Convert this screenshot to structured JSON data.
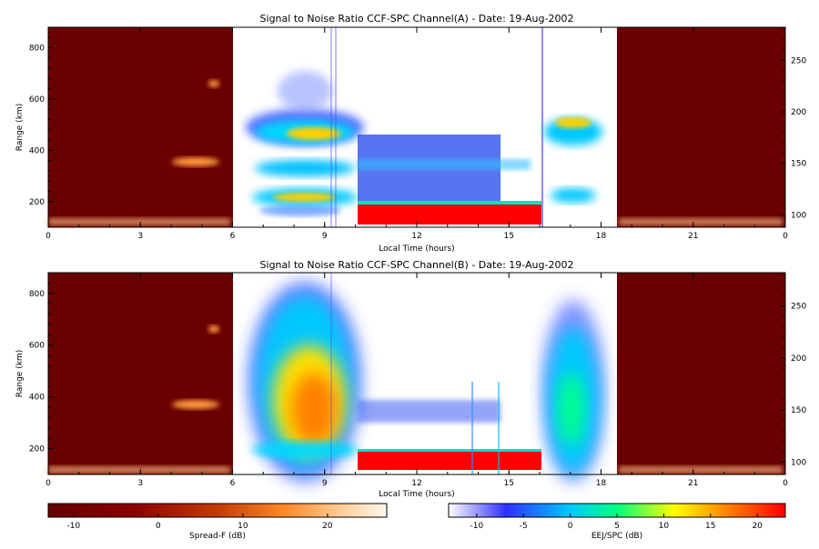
{
  "chart_data": [
    {
      "type": "heatmap",
      "title": "Signal to Noise Ratio CCF-SPC Channel(A) - Date: 19-Aug-2002",
      "xlabel": "Local Time (hours)",
      "ylabel": "Range (km)",
      "x_ticks": [
        "0",
        "3",
        "6",
        "9",
        "12",
        "15",
        "18",
        "21",
        "0"
      ],
      "y_ticks": [
        "200",
        "400",
        "600",
        "800"
      ],
      "y2_ticks": [
        "100",
        "150",
        "200",
        "250"
      ],
      "ylim": [
        100,
        880
      ],
      "y2lim": [
        88,
        282
      ],
      "grid": false,
      "regions": [
        {
          "name": "Spread-F",
          "x_start": 0,
          "x_end": 6,
          "colorbar": "Spread-F"
        },
        {
          "name": "EEJ/SPC",
          "x_start": 6,
          "x_end": 18.5,
          "colorbar": "EEJ/SPC"
        },
        {
          "name": "Spread-F",
          "x_start": 18.5,
          "x_end": 24,
          "colorbar": "Spread-F"
        }
      ],
      "features": [
        {
          "kind": "echo",
          "x_start": 3.9,
          "x_end": 5.2,
          "y_start": 360,
          "y_end": 400,
          "snr_db": 12,
          "colorbar": "Spread-F"
        },
        {
          "kind": "echo",
          "x_start": 5.1,
          "x_end": 5.3,
          "y_start": 640,
          "y_end": 680,
          "snr_db": 6,
          "colorbar": "Spread-F"
        },
        {
          "kind": "layer",
          "x_start": 7.2,
          "x_end": 10.0,
          "y_start": 380,
          "y_end": 540,
          "snr_db": 2,
          "colorbar": "EEJ/SPC"
        },
        {
          "kind": "layer",
          "x_start": 7.5,
          "x_end": 10.0,
          "y_start": 200,
          "y_end": 260,
          "snr_db": 0,
          "colorbar": "EEJ/SPC"
        },
        {
          "kind": "EEJ",
          "x_start": 10.0,
          "x_end": 16.0,
          "y_start": 130,
          "y_end": 200,
          "snr_db": 22,
          "colorbar": "EEJ/SPC"
        },
        {
          "kind": "layer",
          "x_start": 16.2,
          "x_end": 17.5,
          "y_start": 390,
          "y_end": 540,
          "snr_db": 0,
          "colorbar": "EEJ/SPC"
        }
      ]
    },
    {
      "type": "heatmap",
      "title": "Signal to Noise Ratio CCF-SPC Channel(B) - Date: 19-Aug-2002",
      "xlabel": "Local Time (hours)",
      "ylabel": "Range (km)",
      "x_ticks": [
        "0",
        "3",
        "6",
        "9",
        "12",
        "15",
        "18",
        "21",
        "0"
      ],
      "y_ticks": [
        "200",
        "400",
        "600",
        "800"
      ],
      "y2_ticks": [
        "100",
        "150",
        "200",
        "250"
      ],
      "ylim": [
        100,
        880
      ],
      "y2lim": [
        88,
        282
      ],
      "grid": false,
      "regions": [
        {
          "name": "Spread-F",
          "x_start": 0,
          "x_end": 6,
          "colorbar": "Spread-F"
        },
        {
          "name": "EEJ/SPC",
          "x_start": 6,
          "x_end": 18.5,
          "colorbar": "EEJ/SPC"
        },
        {
          "name": "Spread-F",
          "x_start": 18.5,
          "x_end": 24,
          "colorbar": "Spread-F"
        }
      ],
      "features": [
        {
          "kind": "echo",
          "x_start": 3.9,
          "x_end": 5.2,
          "y_start": 360,
          "y_end": 400,
          "snr_db": 12,
          "colorbar": "Spread-F"
        },
        {
          "kind": "layer",
          "x_start": 6.7,
          "x_end": 10.0,
          "y_start": 150,
          "y_end": 880,
          "snr_db": 10,
          "colorbar": "EEJ/SPC"
        },
        {
          "kind": "EEJ",
          "x_start": 10.0,
          "x_end": 16.0,
          "y_start": 130,
          "y_end": 200,
          "snr_db": 22,
          "colorbar": "EEJ/SPC"
        },
        {
          "kind": "layer",
          "x_start": 16.0,
          "x_end": 18.0,
          "y_start": 150,
          "y_end": 820,
          "snr_db": 5,
          "colorbar": "EEJ/SPC"
        }
      ]
    }
  ],
  "colorbars": [
    {
      "label": "Spread-F (dB)",
      "ticks": [
        "-10",
        "0",
        "10",
        "20"
      ],
      "range": [
        -13,
        27
      ],
      "colors": [
        "#640000",
        "#8c0000",
        "#c23c00",
        "#ff8a2a",
        "#ffcf9a",
        "#fff8ee"
      ]
    },
    {
      "label": "EEJ/SPC (dB)",
      "ticks": [
        "-10",
        "-5",
        "0",
        "5",
        "10",
        "15",
        "20"
      ],
      "range": [
        -13,
        23
      ],
      "colors": [
        "#ffffff",
        "#3030ff",
        "#00c8ff",
        "#00ff80",
        "#ffff00",
        "#ff8000",
        "#ff0000"
      ]
    }
  ]
}
